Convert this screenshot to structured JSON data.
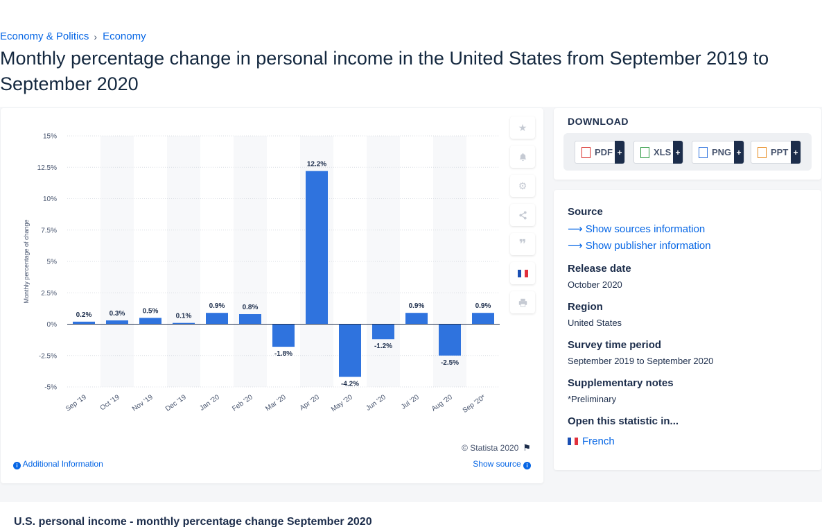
{
  "breadcrumb": {
    "items": [
      "Economy & Politics",
      "Economy"
    ]
  },
  "title": "Monthly percentage change in personal income in the United States from September 2019 to September 2020",
  "chart_data": {
    "type": "bar",
    "ylabel": "Monthly percentage of change",
    "ylim": [
      -5,
      15
    ],
    "yticks": [
      "15%",
      "12.5%",
      "10%",
      "7.5%",
      "5%",
      "2.5%",
      "0%",
      "-2.5%",
      "-5%"
    ],
    "ytick_values": [
      15,
      12.5,
      10,
      7.5,
      5,
      2.5,
      0,
      -2.5,
      -5
    ],
    "categories": [
      "Sep '19",
      "Oct '19",
      "Nov '19",
      "Dec '19",
      "Jan '20",
      "Feb '20",
      "Mar '20",
      "Apr '20",
      "May '20",
      "Jun '20",
      "Jul '20",
      "Aug '20",
      "Sep '20*"
    ],
    "values": [
      0.2,
      0.3,
      0.5,
      0.1,
      0.9,
      0.8,
      -1.8,
      12.2,
      -4.2,
      -1.2,
      0.9,
      -2.5,
      0.9
    ],
    "labels": [
      "0.2%",
      "0.3%",
      "0.5%",
      "0.1%",
      "0.9%",
      "0.8%",
      "-1.8%",
      "12.2%",
      "-4.2%",
      "-1.2%",
      "0.9%",
      "-2.5%",
      "0.9%"
    ],
    "bar_color": "#2f73de",
    "grid": true
  },
  "chart_footer": {
    "copyright": "© Statista 2020",
    "additional_info": "Additional Information",
    "show_source": "Show source"
  },
  "tools": {
    "icons": [
      "star-icon",
      "bell-icon",
      "gear-icon",
      "share-icon",
      "quote-icon",
      "french-flag-icon",
      "print-icon"
    ]
  },
  "download": {
    "title": "DOWNLOAD",
    "buttons": [
      {
        "label": "PDF",
        "icon": "pdf-file-icon",
        "color": "#d9302c"
      },
      {
        "label": "XLS",
        "icon": "xls-file-icon",
        "color": "#2e9b43"
      },
      {
        "label": "PNG",
        "icon": "png-file-icon",
        "color": "#2f73de"
      },
      {
        "label": "PPT",
        "icon": "ppt-file-icon",
        "color": "#e7891b"
      }
    ]
  },
  "meta": {
    "source_label": "Source",
    "show_sources": "Show sources information",
    "show_publisher": "Show publisher information",
    "release_label": "Release date",
    "release_value": "October 2020",
    "region_label": "Region",
    "region_value": "United States",
    "survey_label": "Survey time period",
    "survey_value": "September 2019 to September 2020",
    "notes_label": "Supplementary notes",
    "notes_value": "*Preliminary",
    "open_label": "Open this statistic in...",
    "open_french": "French"
  },
  "bottom": {
    "title": "U.S. personal income - monthly percentage change September 2020"
  }
}
